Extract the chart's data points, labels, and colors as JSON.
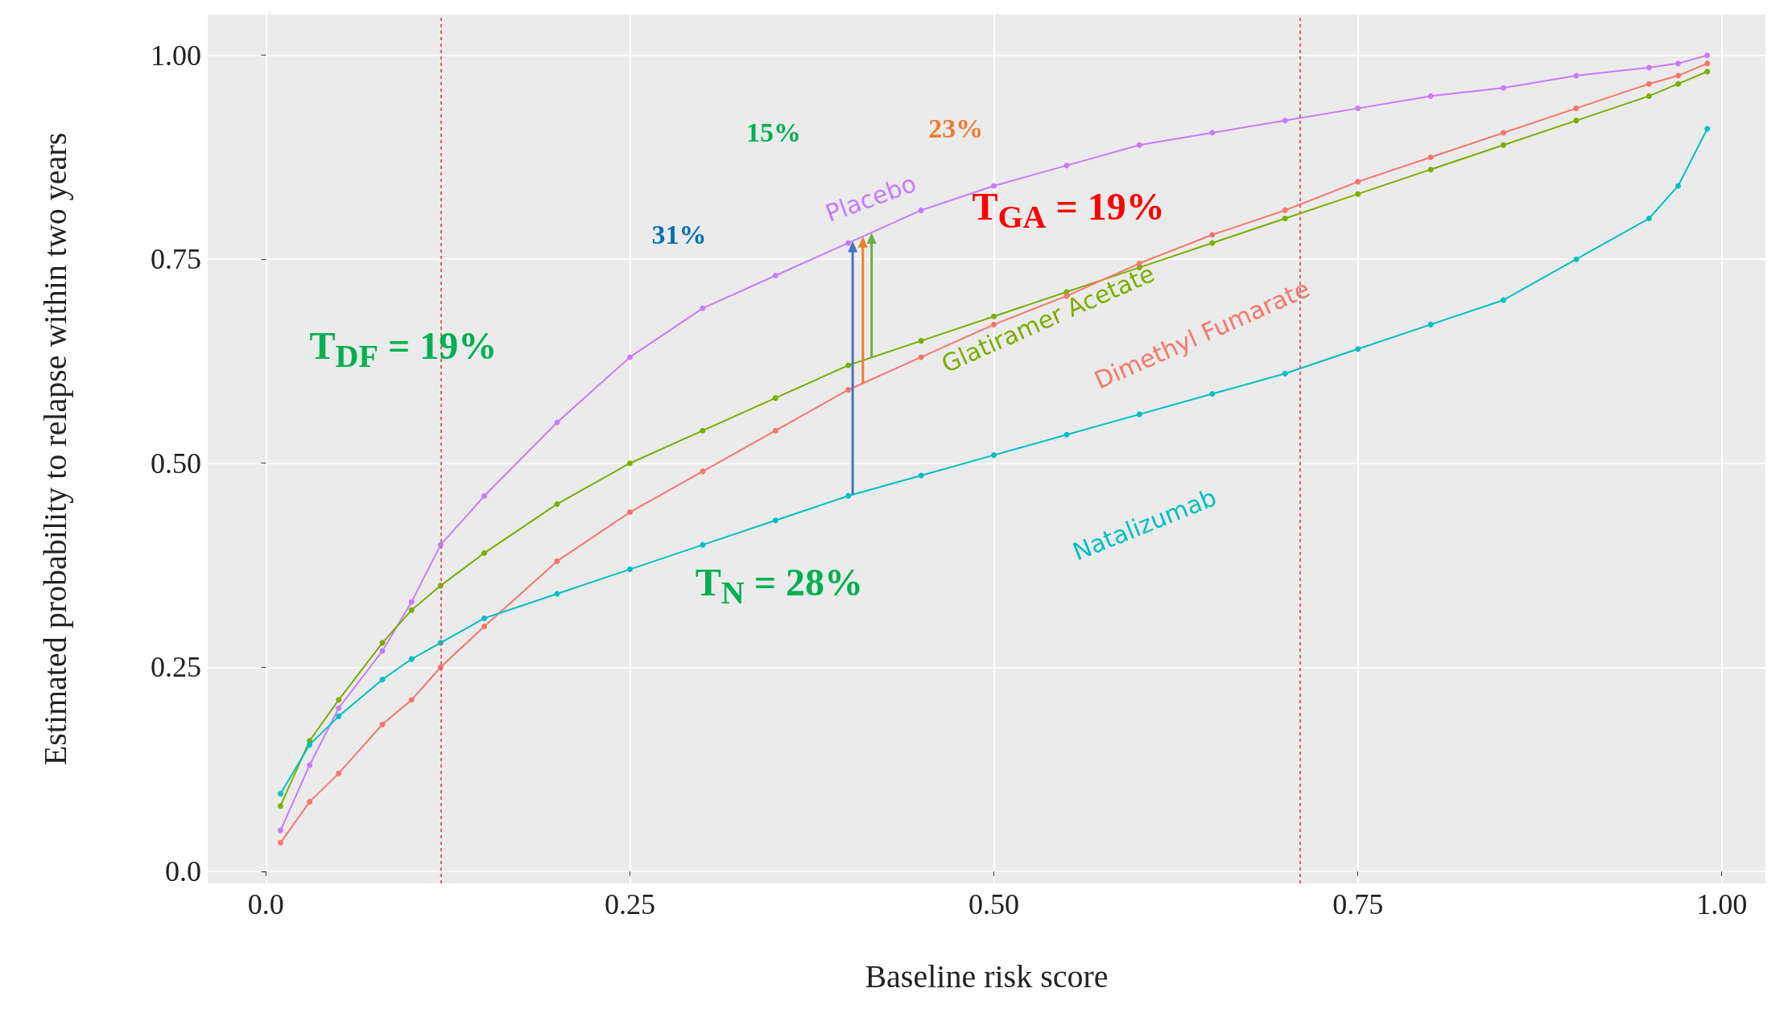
{
  "chart_data": {
    "type": "line",
    "xlabel": "Baseline risk score",
    "ylabel": "Estimated probability to relapse within two years",
    "x": [
      0.01,
      0.03,
      0.05,
      0.08,
      0.1,
      0.12,
      0.15,
      0.2,
      0.25,
      0.3,
      0.35,
      0.4,
      0.45,
      0.5,
      0.55,
      0.6,
      0.65,
      0.7,
      0.75,
      0.8,
      0.85,
      0.9,
      0.95,
      0.97,
      0.99
    ],
    "series": [
      {
        "name": "Placebo",
        "color": "#c77cff",
        "values": [
          0.05,
          0.13,
          0.2,
          0.27,
          0.33,
          0.4,
          0.46,
          0.55,
          0.63,
          0.69,
          0.73,
          0.77,
          0.81,
          0.84,
          0.865,
          0.89,
          0.905,
          0.92,
          0.935,
          0.95,
          0.96,
          0.975,
          0.985,
          0.99,
          1.0
        ]
      },
      {
        "name": "Glatiramer Acetate",
        "color": "#7cae00",
        "values": [
          0.08,
          0.16,
          0.21,
          0.28,
          0.32,
          0.35,
          0.39,
          0.45,
          0.5,
          0.54,
          0.58,
          0.62,
          0.65,
          0.68,
          0.71,
          0.74,
          0.77,
          0.8,
          0.83,
          0.86,
          0.89,
          0.92,
          0.95,
          0.965,
          0.98
        ]
      },
      {
        "name": "Dimethyl Fumarate",
        "color": "#f8766d",
        "values": [
          0.035,
          0.085,
          0.12,
          0.18,
          0.21,
          0.25,
          0.3,
          0.38,
          0.44,
          0.49,
          0.54,
          0.59,
          0.63,
          0.67,
          0.705,
          0.745,
          0.78,
          0.81,
          0.845,
          0.875,
          0.905,
          0.935,
          0.965,
          0.975,
          0.99
        ]
      },
      {
        "name": "Natalizumab",
        "color": "#00bfc4",
        "values": [
          0.095,
          0.155,
          0.19,
          0.235,
          0.26,
          0.28,
          0.31,
          0.34,
          0.37,
          0.4,
          0.43,
          0.46,
          0.485,
          0.51,
          0.535,
          0.56,
          0.585,
          0.61,
          0.64,
          0.67,
          0.7,
          0.75,
          0.8,
          0.84,
          0.91
        ]
      }
    ],
    "xlim": [
      -0.04,
      1.03
    ],
    "ylim": [
      -0.015,
      1.05
    ],
    "xticks": [
      {
        "value": 0,
        "label": "0.0"
      },
      0.25,
      {
        "value": 0.5,
        "label": "0.50"
      },
      0.75,
      {
        "value": 1,
        "label": "1.00"
      }
    ],
    "yticks": [
      {
        "value": 0,
        "label": "0.0"
      },
      0.25,
      {
        "value": 0.5,
        "label": "0.50"
      },
      0.75,
      {
        "value": 1,
        "label": "1.00"
      }
    ],
    "ref_lines": [
      {
        "axis": "x",
        "value": 0.12,
        "color": "#e06060",
        "line_style": "dotted"
      },
      {
        "axis": "x",
        "value": 0.71,
        "color": "#e06060",
        "line_style": "dotted"
      }
    ],
    "annotations": [
      "15%",
      "23%",
      "31%",
      "T$_{GA}$ = 19%",
      "T$_{DF}$ = 19%",
      "T$_{N}$ = 28%"
    ],
    "grid": true,
    "legend": false,
    "marker": "circle",
    "line_style": "solid"
  }
}
